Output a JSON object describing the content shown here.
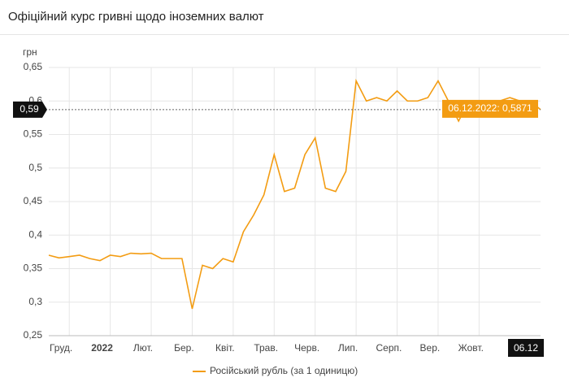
{
  "chart_data": {
    "type": "line",
    "title": "Офіційний курс гривні щодо іноземних валют",
    "y_label": "грн",
    "categories": [
      "Груд.",
      null,
      null,
      null,
      "2022",
      null,
      null,
      null,
      "Лют.",
      null,
      null,
      null,
      "Бер.",
      null,
      null,
      null,
      "Квіт.",
      null,
      null,
      null,
      "Трав.",
      null,
      null,
      null,
      "Черв.",
      null,
      null,
      null,
      "Лип.",
      null,
      null,
      null,
      "Серп.",
      null,
      null,
      null,
      "Вер.",
      null,
      null,
      null,
      "Жовт.",
      null,
      null,
      null,
      null,
      null,
      null,
      null,
      "06.12"
    ],
    "series": [
      {
        "name": "Російський рубль (за 1 одиницю)",
        "color": "#f39c12",
        "values": [
          0.37,
          0.366,
          0.368,
          0.37,
          0.365,
          0.362,
          0.37,
          0.368,
          0.373,
          0.372,
          0.373,
          0.365,
          0.365,
          0.365,
          0.29,
          0.355,
          0.35,
          0.365,
          0.36,
          0.405,
          0.43,
          0.46,
          0.52,
          0.465,
          0.47,
          0.52,
          0.545,
          0.47,
          0.465,
          0.495,
          0.63,
          0.6,
          0.605,
          0.6,
          0.615,
          0.6,
          0.6,
          0.605,
          0.63,
          0.6,
          0.57,
          0.6,
          0.595,
          0.6,
          0.6,
          0.605,
          0.6,
          0.6,
          0.5871
        ]
      }
    ],
    "ylim": [
      0.25,
      0.65
    ],
    "yticks": [
      {
        "value": 0.25,
        "label": "0,25"
      },
      {
        "value": 0.3,
        "label": "0,3"
      },
      {
        "value": 0.35,
        "label": "0,35"
      },
      {
        "value": 0.4,
        "label": "0,4"
      },
      {
        "value": 0.45,
        "label": "0,45"
      },
      {
        "value": 0.5,
        "label": "0,5"
      },
      {
        "value": 0.55,
        "label": "0,55"
      },
      {
        "value": 0.6,
        "label": "0,6"
      },
      {
        "value": 0.65,
        "label": "0,65"
      }
    ],
    "grid": true,
    "crosshair": {
      "value": 0.5871,
      "label": "0,59"
    },
    "tooltip": "06.12.2022: 0,5871"
  }
}
